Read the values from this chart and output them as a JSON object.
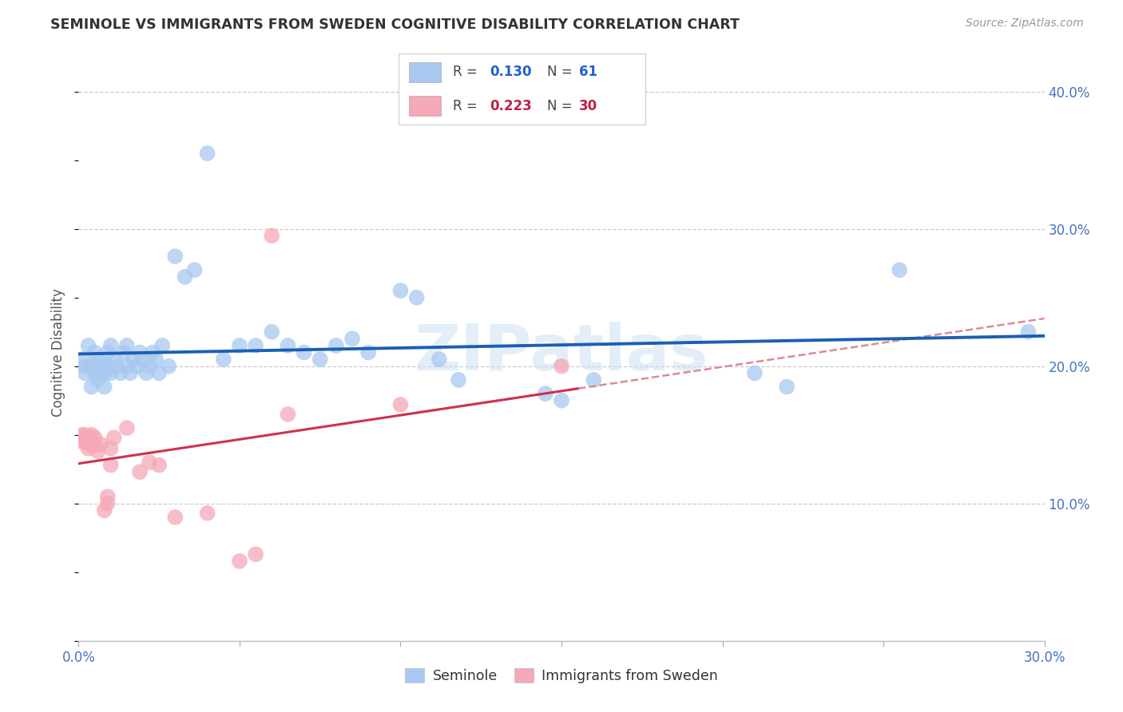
{
  "title": "SEMINOLE VS IMMIGRANTS FROM SWEDEN COGNITIVE DISABILITY CORRELATION CHART",
  "source": "Source: ZipAtlas.com",
  "ylabel": "Cognitive Disability",
  "xlim": [
    0.0,
    0.3
  ],
  "ylim": [
    0.0,
    0.42
  ],
  "xticks": [
    0.0,
    0.05,
    0.1,
    0.15,
    0.2,
    0.25,
    0.3
  ],
  "xticklabels": [
    "0.0%",
    "",
    "",
    "",
    "",
    "",
    "30.0%"
  ],
  "yticks_right": [
    0.1,
    0.2,
    0.3,
    0.4
  ],
  "yticklabels_right": [
    "10.0%",
    "20.0%",
    "30.0%",
    "40.0%"
  ],
  "R_blue": "0.130",
  "N_blue": "61",
  "R_pink": "0.223",
  "N_pink": "30",
  "color_blue": "#a8c8f0",
  "color_pink": "#f5a8b8",
  "line_color_blue": "#1a5fb4",
  "line_color_pink": "#d03050",
  "line_color_pink_dashed": "#e08898",
  "text_color_blue": "#2060d0",
  "text_color_pink": "#c02040",
  "text_color_axis": "#4472c4",
  "watermark": "ZIPatlas",
  "blue_points": [
    [
      0.001,
      0.205
    ],
    [
      0.002,
      0.195
    ],
    [
      0.002,
      0.2
    ],
    [
      0.003,
      0.215
    ],
    [
      0.004,
      0.185
    ],
    [
      0.004,
      0.2
    ],
    [
      0.005,
      0.195
    ],
    [
      0.005,
      0.21
    ],
    [
      0.006,
      0.19
    ],
    [
      0.006,
      0.205
    ],
    [
      0.007,
      0.195
    ],
    [
      0.007,
      0.2
    ],
    [
      0.008,
      0.185
    ],
    [
      0.008,
      0.195
    ],
    [
      0.009,
      0.21
    ],
    [
      0.009,
      0.2
    ],
    [
      0.01,
      0.215
    ],
    [
      0.01,
      0.195
    ],
    [
      0.011,
      0.205
    ],
    [
      0.012,
      0.2
    ],
    [
      0.013,
      0.195
    ],
    [
      0.014,
      0.21
    ],
    [
      0.015,
      0.2
    ],
    [
      0.015,
      0.215
    ],
    [
      0.016,
      0.195
    ],
    [
      0.017,
      0.205
    ],
    [
      0.018,
      0.2
    ],
    [
      0.019,
      0.21
    ],
    [
      0.02,
      0.205
    ],
    [
      0.021,
      0.195
    ],
    [
      0.022,
      0.2
    ],
    [
      0.023,
      0.21
    ],
    [
      0.024,
      0.205
    ],
    [
      0.025,
      0.195
    ],
    [
      0.026,
      0.215
    ],
    [
      0.028,
      0.2
    ],
    [
      0.03,
      0.28
    ],
    [
      0.033,
      0.265
    ],
    [
      0.036,
      0.27
    ],
    [
      0.04,
      0.355
    ],
    [
      0.045,
      0.205
    ],
    [
      0.05,
      0.215
    ],
    [
      0.055,
      0.215
    ],
    [
      0.06,
      0.225
    ],
    [
      0.065,
      0.215
    ],
    [
      0.07,
      0.21
    ],
    [
      0.075,
      0.205
    ],
    [
      0.08,
      0.215
    ],
    [
      0.085,
      0.22
    ],
    [
      0.09,
      0.21
    ],
    [
      0.1,
      0.255
    ],
    [
      0.105,
      0.25
    ],
    [
      0.112,
      0.205
    ],
    [
      0.118,
      0.19
    ],
    [
      0.145,
      0.18
    ],
    [
      0.15,
      0.175
    ],
    [
      0.16,
      0.19
    ],
    [
      0.21,
      0.195
    ],
    [
      0.22,
      0.185
    ],
    [
      0.255,
      0.27
    ],
    [
      0.295,
      0.225
    ]
  ],
  "pink_points": [
    [
      0.001,
      0.145
    ],
    [
      0.001,
      0.15
    ],
    [
      0.002,
      0.15
    ],
    [
      0.002,
      0.145
    ],
    [
      0.003,
      0.14
    ],
    [
      0.003,
      0.148
    ],
    [
      0.004,
      0.142
    ],
    [
      0.004,
      0.15
    ],
    [
      0.005,
      0.143
    ],
    [
      0.005,
      0.148
    ],
    [
      0.006,
      0.138
    ],
    [
      0.007,
      0.143
    ],
    [
      0.008,
      0.095
    ],
    [
      0.009,
      0.1
    ],
    [
      0.009,
      0.105
    ],
    [
      0.01,
      0.128
    ],
    [
      0.01,
      0.14
    ],
    [
      0.011,
      0.148
    ],
    [
      0.015,
      0.155
    ],
    [
      0.019,
      0.123
    ],
    [
      0.022,
      0.13
    ],
    [
      0.025,
      0.128
    ],
    [
      0.03,
      0.09
    ],
    [
      0.04,
      0.093
    ],
    [
      0.05,
      0.058
    ],
    [
      0.055,
      0.063
    ],
    [
      0.06,
      0.295
    ],
    [
      0.065,
      0.165
    ],
    [
      0.1,
      0.172
    ],
    [
      0.15,
      0.2
    ]
  ]
}
